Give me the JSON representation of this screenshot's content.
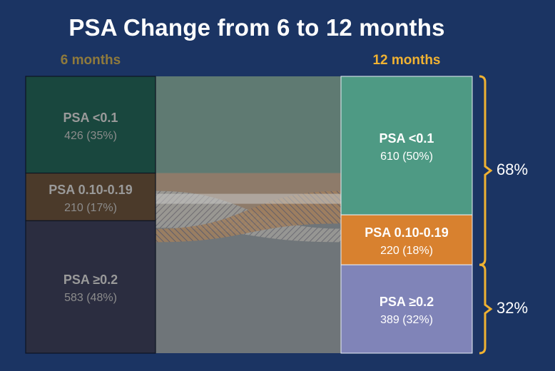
{
  "title": "PSA Change from 6 to 12 months",
  "chart_data": {
    "type": "sankey",
    "left_column_label": "6 months",
    "right_column_label": "12 months",
    "left_nodes": [
      {
        "name": "PSA <0.1",
        "value_label": "426 (35%)",
        "count": 426,
        "percent": 35,
        "color": "#19473e"
      },
      {
        "name": "PSA 0.10-0.19",
        "value_label": "210 (17%)",
        "count": 210,
        "percent": 17,
        "color": "#4b3a2a"
      },
      {
        "name": "PSA ≥0.2",
        "value_label": "583 (48%)",
        "count": 583,
        "percent": 48,
        "color": "#2b2d40"
      }
    ],
    "right_nodes": [
      {
        "name": "PSA <0.1",
        "value_label": "610 (50%)",
        "count": 610,
        "percent": 50,
        "color": "#4e9a84"
      },
      {
        "name": "PSA 0.10-0.19",
        "value_label": "220 (18%)",
        "count": 220,
        "percent": 18,
        "color": "#d8812f"
      },
      {
        "name": "PSA ≥0.2",
        "value_label": "389 (32%)",
        "count": 389,
        "percent": 32,
        "color": "#8084b8"
      }
    ],
    "brackets": [
      {
        "label": "68%",
        "value": 68
      },
      {
        "label": "32%",
        "value": 32
      }
    ]
  }
}
